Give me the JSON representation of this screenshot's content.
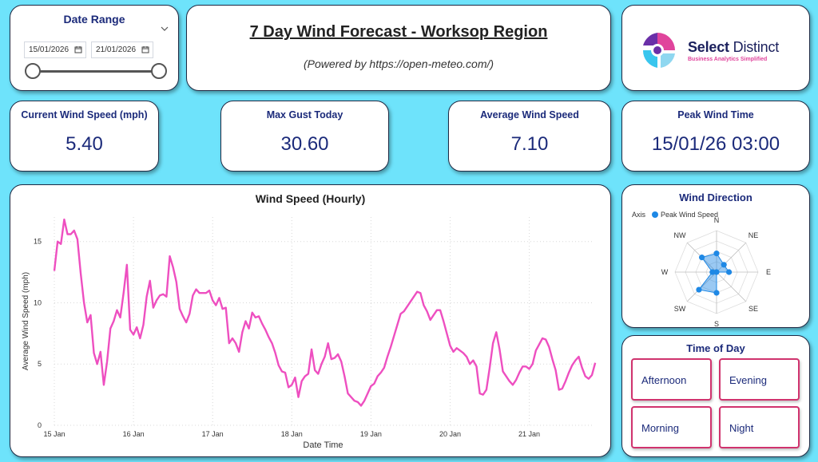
{
  "date_range": {
    "title": "Date Range",
    "start": "15/01/2026",
    "end": "21/01/2026"
  },
  "header": {
    "title": "7 Day Wind Forecast - Worksop Region",
    "subtitle": "(Powered by https://open-meteo.com/)"
  },
  "logo": {
    "name_bold": "Select",
    "name_rest": " Distinct",
    "tagline": "Business Analytics Simplified"
  },
  "kpis": {
    "current": {
      "label": "Current Wind Speed (mph)",
      "value": "5.40"
    },
    "gust": {
      "label": "Max Gust Today",
      "value": "30.60"
    },
    "average": {
      "label": "Average Wind Speed",
      "value": "7.10"
    },
    "peak_time": {
      "label": "Peak Wind Time",
      "value": "15/01/26 03:00"
    }
  },
  "colors": {
    "background": "#6ee3fb",
    "navy": "#1b2a7a",
    "line": "#ee4fc0",
    "radar": "#1e88e5",
    "button_border": "#d0336e"
  },
  "chart_data": [
    {
      "type": "line",
      "title": "Wind Speed (Hourly)",
      "xlabel": "Date Time",
      "ylabel": "Average Wind Speed (mph)",
      "xlim": [
        0,
        163
      ],
      "ylim": [
        0,
        17
      ],
      "yticks": [
        0,
        5,
        10,
        15
      ],
      "x_tick_labels": [
        "15 Jan",
        "16 Jan",
        "17 Jan",
        "18 Jan",
        "19 Jan",
        "20 Jan",
        "21 Jan"
      ],
      "grid": true,
      "series": [
        {
          "values": [
            12.6,
            15.0,
            14.8,
            16.8,
            15.6,
            15.6,
            15.9,
            15.2,
            12.4,
            10.0,
            8.4,
            9.0,
            5.9,
            5.0,
            6.0,
            3.3,
            5.2,
            7.9,
            8.5,
            9.4,
            8.8,
            10.8,
            13.1,
            7.8,
            7.4,
            8.0,
            7.1,
            8.2,
            10.5,
            11.8,
            9.6,
            10.2,
            10.6,
            10.7,
            10.5,
            13.8,
            12.9,
            11.7,
            9.5,
            8.9,
            8.4,
            9.1,
            10.6,
            11.1,
            10.8,
            10.8,
            10.8,
            11.0,
            10.2,
            9.8,
            10.4,
            9.5,
            9.6,
            6.7,
            7.1,
            6.7,
            6.0,
            7.6,
            8.5,
            7.9,
            9.2,
            8.8,
            8.9,
            8.3,
            7.8,
            7.2,
            6.7,
            5.9,
            4.9,
            4.4,
            4.3,
            3.1,
            3.3,
            3.9,
            2.3,
            3.6,
            4.0,
            4.2,
            6.2,
            4.5,
            4.2,
            5.0,
            5.6,
            6.7,
            5.4,
            5.5,
            5.8,
            5.2,
            4.0,
            2.6,
            2.3,
            2.0,
            1.9,
            1.6,
            2.0,
            2.6,
            3.2,
            3.4,
            4.0,
            4.3,
            4.7,
            5.6,
            6.4,
            7.3,
            8.2,
            9.1,
            9.3,
            9.7,
            10.1,
            10.5,
            10.9,
            10.8,
            9.8,
            9.3,
            8.6,
            9.0,
            9.4,
            9.4,
            8.5,
            7.5,
            6.5,
            6.0,
            6.3,
            6.1,
            5.9,
            5.6,
            5.0,
            5.3,
            4.8,
            2.6,
            2.5,
            2.9,
            4.7,
            6.7,
            7.6,
            6.2,
            4.4,
            4.0,
            3.6,
            3.3,
            3.7,
            4.3,
            4.8,
            4.8,
            4.6,
            5.0,
            6.1,
            6.6,
            7.1,
            7.0,
            6.4,
            5.4,
            4.5,
            2.9,
            3.0,
            3.6,
            4.3,
            4.9,
            5.3,
            5.6,
            4.7,
            4.0,
            3.8,
            4.1,
            5.1
          ],
          "color": "#ee4fc0"
        }
      ]
    },
    {
      "type": "radar",
      "title": "Wind Direction",
      "legend": [
        "Axis",
        "Peak Wind Speed"
      ],
      "categories": [
        "N",
        "NE",
        "E",
        "SE",
        "S",
        "SW",
        "W",
        "NW"
      ],
      "values": [
        0.45,
        0.25,
        0.3,
        0.0,
        0.5,
        0.6,
        0.1,
        0.5
      ],
      "rmax": 1.0
    }
  ],
  "time_of_day": {
    "title": "Time of Day",
    "options": [
      "Afternoon",
      "Evening",
      "Morning",
      "Night"
    ]
  }
}
